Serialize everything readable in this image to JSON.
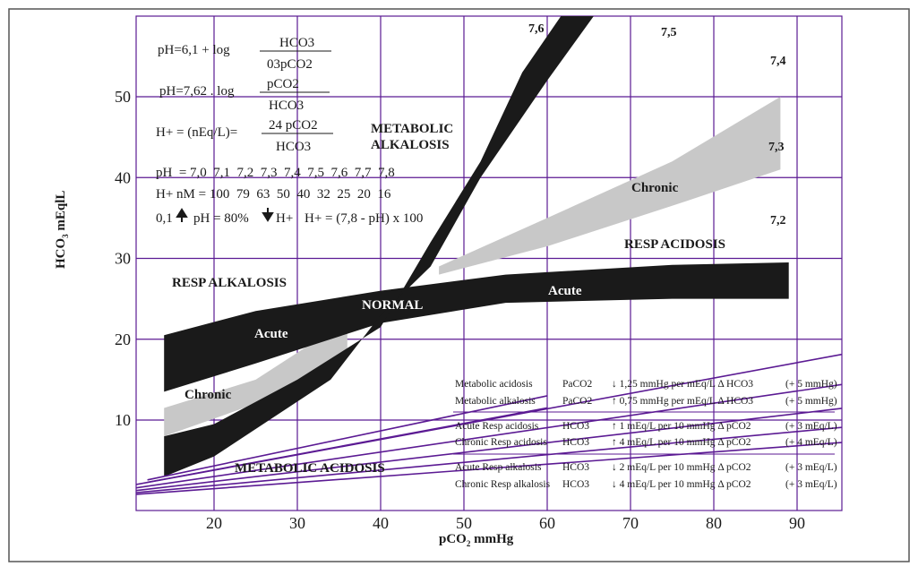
{
  "chart_data": {
    "type": "line",
    "xlabel": "pCO2 mmHg",
    "ylabel": "HCO3 mEqlL",
    "xlim": [
      10,
      95
    ],
    "ylim": [
      0,
      60
    ],
    "x_ticks": [
      20,
      30,
      40,
      50,
      60,
      70,
      80,
      90
    ],
    "y_ticks": [
      10,
      20,
      30,
      40,
      50
    ],
    "grid": true,
    "colors": {
      "isobar": "#5b1a93",
      "band_dark": "#1a1a1a",
      "band_chronic": "#c8c8c8",
      "frame": "#555555"
    },
    "isopleths": [
      {
        "name": "7,2",
        "slope": 0.0757
      },
      {
        "name": "7,3",
        "slope": 0.0953
      },
      {
        "name": "7,4",
        "slope": 0.12
      },
      {
        "name": "7,5",
        "slope": 0.151
      },
      {
        "name": "7,6",
        "slope": 0.19
      }
    ],
    "extra_lines": [
      {
        "x": [
          12,
          60
        ],
        "y": [
          2.6,
          13
        ]
      },
      {
        "x": [
          12,
          60
        ],
        "y": [
          2.3,
          11.5
        ]
      }
    ],
    "isopleth_labels": [
      "7,6",
      "7,5",
      "7,4",
      "7,3",
      "7,2"
    ],
    "regions": {
      "metabolic_alkalosis_line1": "METABOLIC",
      "metabolic_alkalosis_line2": "ALKALOSIS",
      "resp_alkalosis": "RESP  ALKALOSIS",
      "normal": "NORMAL",
      "resp_acidosis": "RESP ACIDOSIS",
      "metabolic_acidosis": "METABOLIC ACIDOSIS",
      "acute_left": "Acute",
      "acute_right": "Acute",
      "chronic_left": "Chronic",
      "chronic_right": "Chronic"
    },
    "bands": {
      "resp_acute": {
        "upper": [
          [
            14,
            20.5
          ],
          [
            25,
            23.5
          ],
          [
            40,
            26
          ],
          [
            55,
            28
          ],
          [
            75,
            29.2
          ],
          [
            89,
            29.5
          ]
        ],
        "lower": [
          [
            89,
            25
          ],
          [
            75,
            25
          ],
          [
            55,
            24.5
          ],
          [
            40,
            22
          ],
          [
            25,
            17
          ],
          [
            14,
            13.5
          ]
        ]
      },
      "resp_chronic_right": {
        "upper": [
          [
            47,
            29
          ],
          [
            60,
            35
          ],
          [
            75,
            42
          ],
          [
            88,
            50
          ]
        ],
        "lower": [
          [
            88,
            41
          ],
          [
            75,
            36.5
          ],
          [
            60,
            31.5
          ],
          [
            47,
            28
          ]
        ]
      },
      "resp_chronic_left": {
        "upper": [
          [
            14,
            11.5
          ],
          [
            25,
            15
          ],
          [
            34,
            21
          ],
          [
            36,
            21
          ]
        ],
        "lower": [
          [
            36,
            18
          ],
          [
            25,
            12
          ],
          [
            14,
            8
          ]
        ]
      },
      "metabolic": {
        "upper": [
          [
            14,
            8
          ],
          [
            20,
            9.5
          ],
          [
            30,
            15
          ],
          [
            40,
            21.5
          ],
          [
            46,
            32
          ],
          [
            52,
            42
          ],
          [
            57,
            53
          ],
          [
            63,
            65
          ]
        ],
        "lower": [
          [
            67,
            65
          ],
          [
            60,
            52
          ],
          [
            52,
            40
          ],
          [
            46,
            29
          ],
          [
            40,
            23
          ],
          [
            34,
            15
          ],
          [
            20,
            5.5
          ],
          [
            14,
            3
          ]
        ]
      }
    }
  },
  "formulas": {
    "f1_lhs": "pH=6,1 + log",
    "f1_num": "HCO3",
    "f1_den": "03pCO2",
    "f2_lhs": "pH=7,62 . log",
    "f2_num": "pCO2",
    "f2_den": "HCO3",
    "f3_lhs": "H+ = (nEq/L)=",
    "f3_num": "24 pCO2",
    "f3_den": "HCO3",
    "ph_row": "pH  = 7,0  7,1  7,2  7,3  7,4  7,5  7,6  7,7  7,8",
    "h_row": "H+ nM = 100  79  63  50  40  32  25  20  16",
    "rule_a": "0,1",
    "rule_b": "pH = 80%",
    "rule_c": "H+",
    "rule_d": "H+ = (7,8 - pH) x 100"
  },
  "compensation_table": [
    {
      "disorder": "Metabolic acidosis",
      "param": "PaCO2",
      "change": "↓ 1,25 mmHg per mEq/L Δ HCO3",
      "range": "(+ 5 mmHg)"
    },
    {
      "disorder": "Metabolic alkalosis",
      "param": "PaCO2",
      "change": "↑ 0,75 mmHg per mEq/L Δ HCO3",
      "range": "(+ 5 mmHg)"
    },
    {
      "disorder": "Acute Resp acidosis",
      "param": "HCO3",
      "change": "↑ 1 mEq/L per 10 mmHg Δ pCO2",
      "range": "(+ 3 mEq/L)"
    },
    {
      "disorder": "Chronic Resp acidosis",
      "param": "HCO3",
      "change": "↑ 4 mEq/L per 10 mmHg Δ pCO2",
      "range": "(+ 4 mEq/L)"
    },
    {
      "disorder": "Acute Resp alkalosis",
      "param": "HCO3",
      "change": "↓ 2 mEq/L per 10 mmHg Δ pCO2",
      "range": "(+ 3 mEq/L)"
    },
    {
      "disorder": "Chronic Resp alkalosis",
      "param": "HCO3",
      "change": "↓ 4 mEq/L per 10 mmHg Δ pCO2",
      "range": "(+ 3 mEq/L)"
    }
  ]
}
